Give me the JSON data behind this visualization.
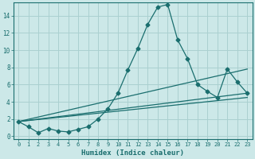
{
  "xlabel": "Humidex (Indice chaleur)",
  "bg_color": "#cce8e8",
  "grid_color": "#aad0d0",
  "line_color": "#1a6e6e",
  "xlim": [
    -0.5,
    23.5
  ],
  "ylim": [
    -0.3,
    15.5
  ],
  "yticks": [
    0,
    2,
    4,
    6,
    8,
    10,
    12,
    14
  ],
  "xticks": [
    0,
    1,
    2,
    3,
    4,
    5,
    6,
    7,
    8,
    9,
    10,
    11,
    12,
    13,
    14,
    15,
    16,
    17,
    18,
    19,
    20,
    21,
    22,
    23
  ],
  "main_line": {
    "x": [
      0,
      1,
      2,
      3,
      4,
      5,
      6,
      7,
      8,
      9,
      10,
      11,
      12,
      13,
      14,
      15,
      16,
      17,
      18,
      19,
      20,
      21,
      22,
      23
    ],
    "y": [
      1.7,
      1.1,
      0.4,
      0.9,
      0.6,
      0.5,
      0.8,
      1.1,
      2.0,
      3.2,
      5.0,
      7.7,
      10.2,
      13.0,
      15.0,
      15.3,
      11.2,
      9.0,
      6.0,
      5.2,
      4.5,
      7.8,
      6.3,
      5.0
    ]
  },
  "straight_lines": [
    {
      "x": [
        0,
        23
      ],
      "y": [
        1.7,
        7.8
      ]
    },
    {
      "x": [
        0,
        23
      ],
      "y": [
        1.7,
        5.0
      ]
    },
    {
      "x": [
        0,
        23
      ],
      "y": [
        1.7,
        4.5
      ]
    }
  ]
}
